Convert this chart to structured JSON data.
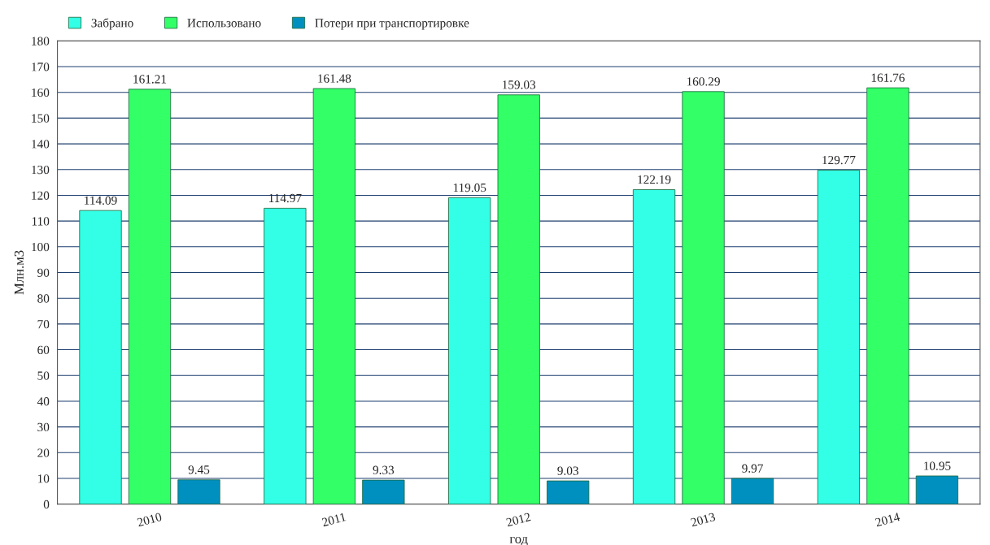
{
  "chart_data": {
    "type": "bar",
    "categories": [
      "2010",
      "2011",
      "2012",
      "2013",
      "2014"
    ],
    "series": [
      {
        "name": "Забрано",
        "color": "#33ffe6",
        "values": [
          114.09,
          114.97,
          119.05,
          122.19,
          129.77
        ]
      },
      {
        "name": "Использовано",
        "color": "#33ff66",
        "values": [
          161.21,
          161.48,
          159.03,
          160.29,
          161.76
        ]
      },
      {
        "name": "Потери при транспортировке",
        "color": "#0090c0",
        "values": [
          9.45,
          9.33,
          9.03,
          9.97,
          10.95
        ]
      }
    ],
    "xlabel": "год",
    "ylabel": "Млн.м3",
    "ylim": [
      0,
      180
    ],
    "yticks": [
      0,
      10,
      20,
      30,
      40,
      50,
      60,
      70,
      80,
      90,
      100,
      110,
      120,
      130,
      140,
      150,
      160,
      170,
      180
    ],
    "grid": "y",
    "legend": "top left",
    "data_labels": true
  }
}
